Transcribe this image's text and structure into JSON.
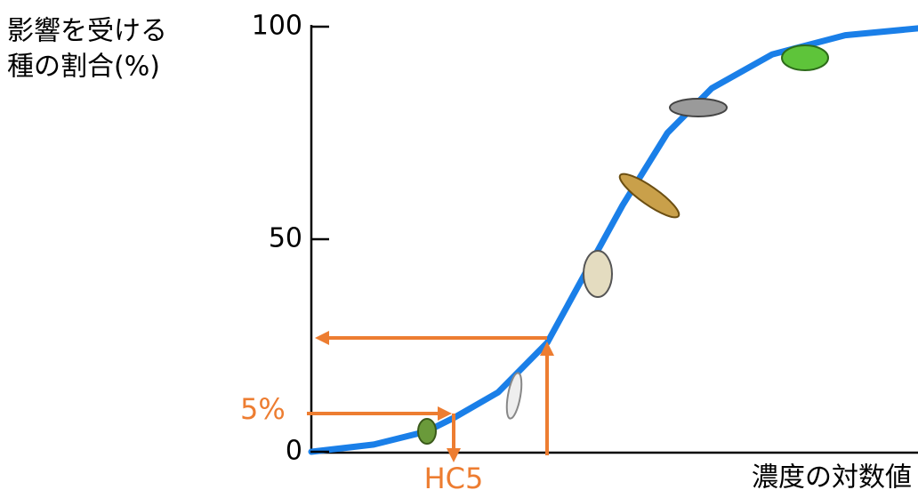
{
  "chart_data": {
    "type": "line",
    "y_label": [
      "影響を受ける",
      "種の割合(%)"
    ],
    "x_label": "濃度の対数値",
    "annotations": {
      "percent": "5%",
      "hc": "HC5"
    },
    "x": [
      0,
      10.3,
      19,
      23.5,
      30.8,
      38.9,
      44,
      51.3,
      58.7,
      66,
      76,
      88,
      100
    ],
    "values": [
      0,
      1.7,
      4.8,
      8,
      14,
      25.7,
      39,
      58,
      75,
      85.5,
      93.5,
      98,
      99.6
    ],
    "color": "#1a7fe8",
    "xlim": [
      0,
      100
    ],
    "ylim": [
      0,
      100
    ],
    "yticks": [
      0,
      50,
      100
    ]
  }
}
